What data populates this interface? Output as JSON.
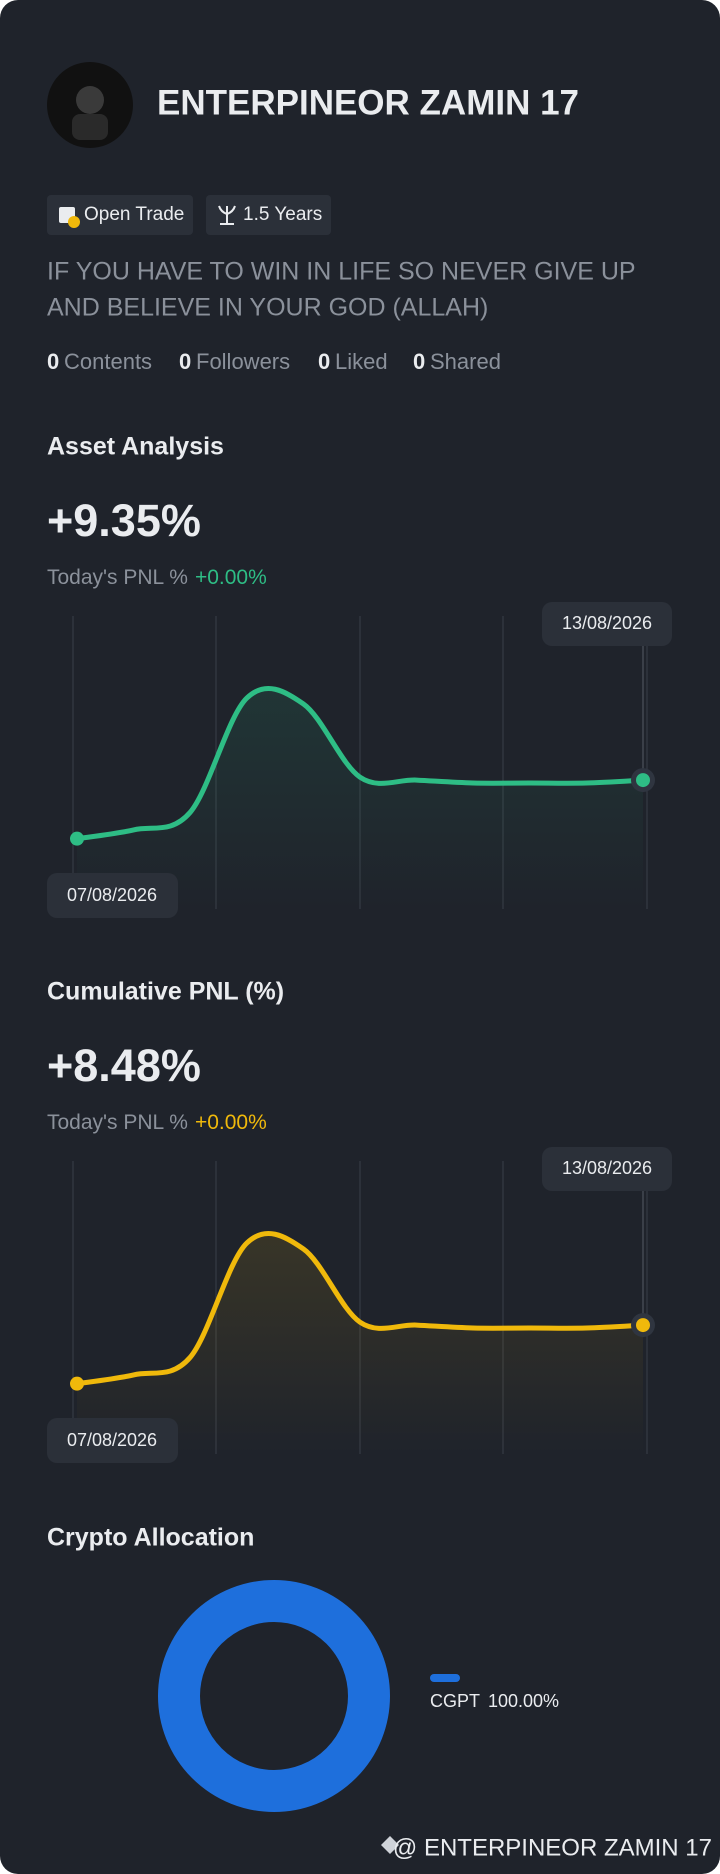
{
  "profile": {
    "name": "ENTERPINEOR ZAMIN 17",
    "tags": [
      "Open Trade",
      "1.5 Years"
    ],
    "bio_lines": [
      "IF YOU HAVE TO WIN IN LIFE SO NEVER GIVE UP",
      "AND BELIEVE IN YOUR GOD (ALLAH)"
    ],
    "stats": [
      {
        "count": 0,
        "label": "Contents"
      },
      {
        "count": 0,
        "label": "Followers"
      },
      {
        "count": 0,
        "label": "Liked"
      },
      {
        "count": 0,
        "label": "Shared"
      }
    ]
  },
  "chart_data": [
    {
      "type": "line",
      "title": "Asset Analysis",
      "headline": "+9.35%",
      "pnl_label": "Today's PNL %",
      "pnl_value": "+0.00%",
      "x": [
        "07/08/2026",
        null,
        null,
        null,
        null,
        null,
        null,
        null,
        null,
        null,
        "13/08/2026"
      ],
      "series": [
        {
          "color": "#2ebd85",
          "values": [
            24,
            27,
            33,
            72,
            70,
            45,
            44,
            43,
            43,
            43,
            44
          ]
        }
      ],
      "ylim": [
        0,
        100
      ]
    },
    {
      "type": "line",
      "title": "Cumulative PNL (%)",
      "headline": "+8.48%",
      "pnl_label": "Today's PNL %",
      "pnl_value": "+0.00%",
      "x": [
        "07/08/2026",
        null,
        null,
        null,
        null,
        null,
        null,
        null,
        null,
        null,
        "13/08/2026"
      ],
      "series": [
        {
          "color": "#f0b90b",
          "values": [
            24,
            27,
            33,
            72,
            70,
            45,
            44,
            43,
            43,
            43,
            44
          ]
        }
      ],
      "ylim": [
        0,
        100
      ]
    },
    {
      "type": "pie",
      "title": "Crypto Allocation",
      "categories": [
        "CGPT"
      ],
      "values": [
        100
      ],
      "value_labels": [
        "100.00%"
      ],
      "colors": [
        "#1e6fdc"
      ]
    }
  ],
  "footer": {
    "text": "@ ENTERPINEOR ZAMIN 17"
  }
}
